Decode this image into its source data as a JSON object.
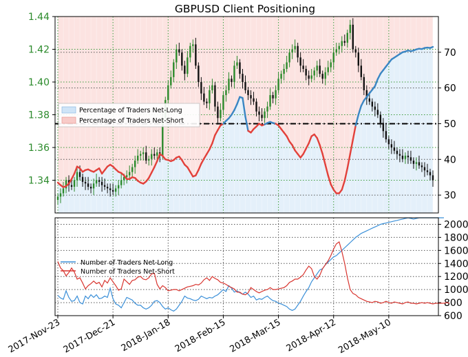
{
  "chart_data": [
    {
      "type": "line",
      "title": "GBPUSD Client Positioning",
      "description_axes": {
        "left_ylim": [
          1.32,
          1.44
        ],
        "left_ticks": [
          "1.34",
          "1.36",
          "1.38",
          "1.40",
          "1.42",
          "1.44"
        ],
        "right_ylim": [
          25,
          80
        ],
        "right_ticks": [
          "30",
          "40",
          "50",
          "60",
          "70"
        ]
      },
      "legend": {
        "placement": "middle-left",
        "entries": [
          "Percentage of Traders Net-Long",
          "Percentage of Traders Net-Short"
        ]
      },
      "reference_line_right": 50,
      "price_series": {
        "name": "",
        "x_start": "2017-11-23",
        "closes": [
          1.33,
          1.332,
          1.335,
          1.34,
          1.337,
          1.336,
          1.34,
          1.345,
          1.342,
          1.339,
          1.338,
          1.336,
          1.335,
          1.338,
          1.34,
          1.339,
          1.337,
          1.336,
          1.335,
          1.334,
          1.333,
          1.335,
          1.337,
          1.34,
          1.342,
          1.343,
          1.345,
          1.348,
          1.352,
          1.355,
          1.356,
          1.357,
          1.352,
          1.353,
          1.356,
          1.355,
          1.357,
          1.355,
          1.378,
          1.389,
          1.398,
          1.403,
          1.412,
          1.42,
          1.418,
          1.41,
          1.405,
          1.415,
          1.422,
          1.423,
          1.41,
          1.4,
          1.393,
          1.388,
          1.387,
          1.395,
          1.398,
          1.385,
          1.378,
          1.383,
          1.392,
          1.395,
          1.402,
          1.4,
          1.41,
          1.412,
          1.405,
          1.4,
          1.395,
          1.392,
          1.39,
          1.388,
          1.382,
          1.38,
          1.378,
          1.382,
          1.385,
          1.392,
          1.39,
          1.395,
          1.402,
          1.405,
          1.408,
          1.412,
          1.418,
          1.42,
          1.422,
          1.415,
          1.41,
          1.408,
          1.404,
          1.402,
          1.404,
          1.407,
          1.41,
          1.405,
          1.402,
          1.406,
          1.409,
          1.412,
          1.418,
          1.42,
          1.422,
          1.425,
          1.424,
          1.43,
          1.435,
          1.42,
          1.418,
          1.41,
          1.403,
          1.395,
          1.39,
          1.388,
          1.385,
          1.383,
          1.38,
          1.375,
          1.37,
          1.365,
          1.362,
          1.36,
          1.358,
          1.356,
          1.355,
          1.353,
          1.355,
          1.354,
          1.352,
          1.35,
          1.351,
          1.349,
          1.348,
          1.346,
          1.345,
          1.343,
          1.34
        ]
      },
      "net_long_pct_series": {
        "name": "Percentage of Traders Net-Long",
        "values": [
          33.5,
          32.8,
          32.2,
          32.5,
          33.2,
          34.5,
          36.0,
          38.0,
          37.5,
          36.5,
          37.0,
          37.2,
          36.8,
          36.5,
          37.0,
          37.5,
          36.0,
          37.0,
          38.0,
          38.5,
          38.0,
          37.2,
          36.5,
          36.2,
          35.5,
          34.5,
          34.5,
          35.0,
          34.8,
          34.0,
          33.5,
          33.2,
          33.8,
          34.8,
          36.3,
          37.8,
          39.5,
          41.5,
          41.0,
          40.0,
          39.8,
          39.5,
          39.8,
          40.5,
          40.8,
          39.8,
          38.5,
          37.8,
          36.5,
          35.2,
          35.5,
          37.0,
          38.8,
          40.2,
          41.5,
          42.8,
          44.5,
          46.8,
          48.2,
          49.5,
          50.0,
          50.8,
          51.5,
          52.5,
          53.8,
          55.5,
          57.5,
          57.2,
          52.0,
          48.0,
          47.5,
          48.5,
          49.2,
          50.0,
          49.5,
          49.8,
          50.2,
          50.5,
          50.2,
          50.0,
          49.5,
          48.5,
          47.5,
          46.5,
          45.0,
          44.0,
          42.5,
          41.5,
          40.5,
          41.5,
          43.0,
          44.5,
          46.5,
          47.0,
          46.0,
          44.0,
          41.5,
          38.5,
          35.5,
          33.0,
          31.5,
          30.5,
          30.5,
          31.5,
          34.0,
          37.5,
          41.5,
          45.5,
          49.5,
          52.5,
          55.0,
          56.5,
          57.5,
          58.5,
          59.5,
          60.5,
          62.5,
          64.0,
          65.0,
          66.0,
          67.0,
          68.0,
          68.5,
          69.0,
          69.5,
          70.0,
          70.2,
          70.5,
          70.3,
          70.5,
          70.8,
          71.0,
          70.9,
          71.2,
          71.3,
          71.2,
          71.5
        ]
      }
    },
    {
      "type": "line",
      "title": "",
      "xlabel": "",
      "x_tick_labels": [
        "2017-Nov-23",
        "2017-Dec-21",
        "2018-Jan-18",
        "2018-Feb-15",
        "2018-Mar-15",
        "2018-Apr-12",
        "2018-May-10"
      ],
      "ylim": [
        600,
        2100
      ],
      "y_tick_labels": [
        "600",
        "800",
        "1000",
        "1200",
        "1400",
        "1600",
        "1800",
        "2000"
      ],
      "legend": {
        "placement": "middle-left",
        "entries": [
          "Number of Traders Net-Long",
          "Number of Traders Net-Short"
        ]
      },
      "series": [
        {
          "name": "Number of Traders Net-Long",
          "values": [
            910,
            870,
            850,
            980,
            880,
            820,
            830,
            900,
            800,
            780,
            900,
            860,
            920,
            880,
            920,
            860,
            870,
            900,
            880,
            1020,
            860,
            780,
            760,
            720,
            800,
            880,
            860,
            840,
            790,
            760,
            760,
            720,
            700,
            720,
            760,
            820,
            830,
            800,
            740,
            700,
            720,
            690,
            670,
            700,
            760,
            820,
            900,
            870,
            860,
            840,
            830,
            850,
            900,
            880,
            860,
            880,
            870,
            900,
            920,
            960,
            1000,
            970,
            1060,
            1020,
            960,
            980,
            950,
            930,
            960,
            930,
            880,
            900,
            840,
            860,
            850,
            880,
            900,
            860,
            830,
            820,
            790,
            780,
            760,
            740,
            700,
            680,
            700,
            760,
            820,
            900,
            970,
            1030,
            1120,
            1180,
            1240,
            1300,
            1320,
            1380,
            1420,
            1460,
            1500,
            1520,
            1560,
            1600,
            1640,
            1680,
            1720,
            1760,
            1800,
            1830,
            1860,
            1880,
            1900,
            1920,
            1940,
            1960,
            1980,
            2000,
            2010,
            2020,
            2030,
            2040,
            2050,
            2060,
            2070,
            2080,
            2090,
            2100,
            2090,
            2080,
            2090,
            2100,
            2110,
            2120,
            2110,
            2100,
            2110,
            2120,
            2130,
            2120,
            2130
          ]
        },
        {
          "name": "Number of Traders Net-Short",
          "values": [
            1430,
            1330,
            1290,
            1210,
            1260,
            1330,
            1270,
            1160,
            1180,
            1100,
            1010,
            1060,
            1090,
            1130,
            1090,
            1110,
            1040,
            1140,
            1100,
            1180,
            1120,
            1060,
            990,
            1010,
            1160,
            1120,
            1080,
            1140,
            1150,
            1190,
            1200,
            1160,
            1150,
            1180,
            1240,
            1250,
            1080,
            1010,
            1060,
            1030,
            980,
            990,
            1000,
            1000,
            980,
            1000,
            1020,
            1040,
            1050,
            1060,
            1080,
            1070,
            1100,
            1150,
            1180,
            1140,
            1200,
            1170,
            1150,
            1110,
            1100,
            1080,
            1050,
            1030,
            1010,
            960,
            960,
            930,
            920,
            950,
            1030,
            1000,
            970,
            950,
            970,
            990,
            1000,
            1030,
            1000,
            1000,
            1010,
            1020,
            1030,
            1060,
            1110,
            1130,
            1160,
            1160,
            1190,
            1230,
            1300,
            1360,
            1320,
            1200,
            1160,
            1220,
            1320,
            1380,
            1440,
            1520,
            1620,
            1700,
            1730,
            1580,
            1400,
            1180,
            1000,
            940,
            920,
            880,
            860,
            840,
            820,
            810,
            800,
            820,
            810,
            790,
            800,
            820,
            800,
            790,
            810,
            800,
            790,
            780,
            800,
            810,
            790,
            790,
            780,
            790,
            800,
            790,
            800,
            790,
            780,
            790,
            790,
            790,
            790,
            800,
            790
          ]
        }
      ]
    }
  ]
}
